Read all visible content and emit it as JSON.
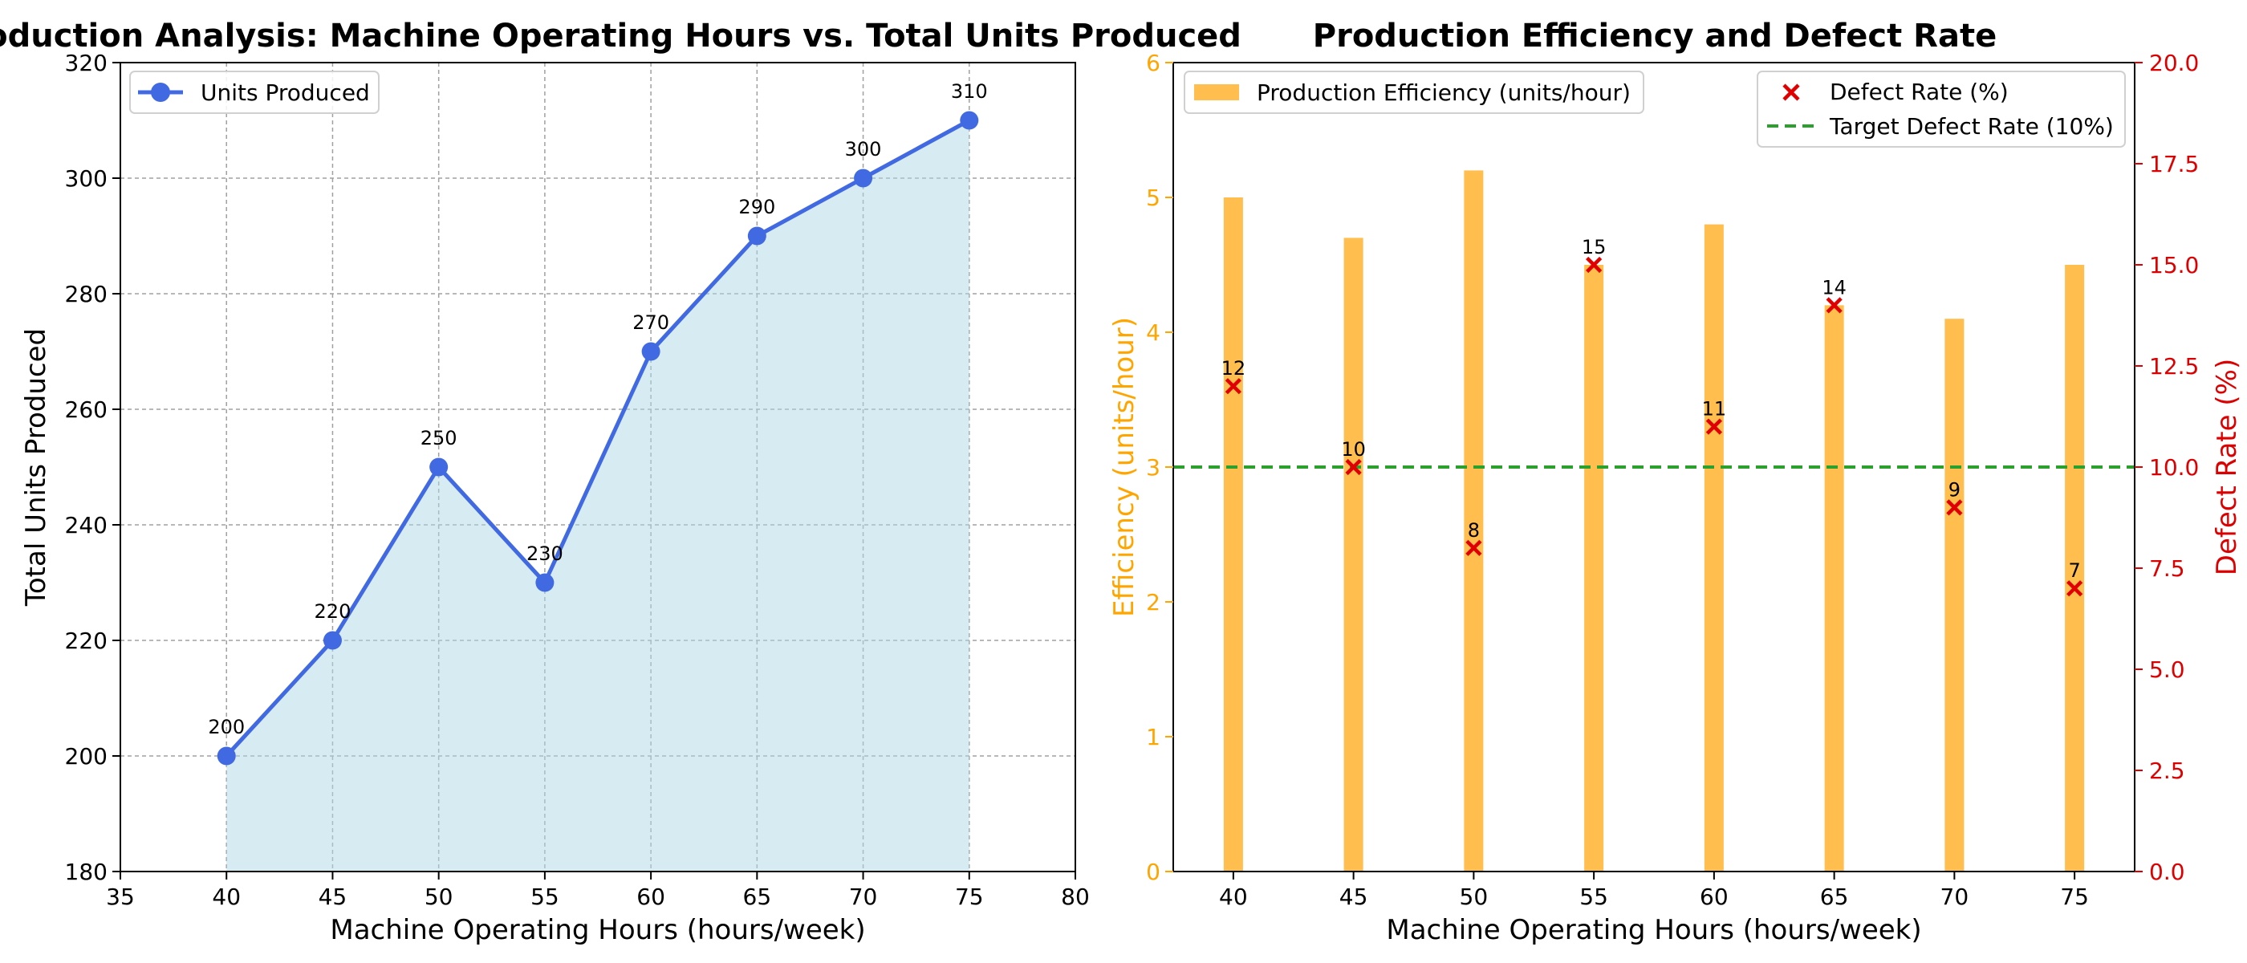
{
  "chart_data": [
    {
      "type": "line",
      "title": "Production Analysis: Machine Operating Hours vs. Total Units Produced",
      "xlabel": "Machine Operating Hours (hours/week)",
      "ylabel": "Total Units Produced",
      "xlim": [
        35,
        80
      ],
      "ylim": [
        180,
        320
      ],
      "xticks": [
        35,
        40,
        45,
        50,
        55,
        60,
        65,
        70,
        75,
        80
      ],
      "yticks": [
        180,
        200,
        220,
        240,
        260,
        280,
        300,
        320
      ],
      "grid": true,
      "legend_position": "top-left",
      "fill_under": true,
      "series": [
        {
          "name": "Units Produced",
          "color": "#4169e1",
          "fill_color": "#add8e6",
          "x": [
            40,
            45,
            50,
            55,
            60,
            65,
            70,
            75
          ],
          "y": [
            200,
            220,
            250,
            230,
            270,
            290,
            300,
            310
          ],
          "labels": [
            "200",
            "220",
            "250",
            "230",
            "270",
            "290",
            "300",
            "310"
          ]
        }
      ]
    },
    {
      "type": "bar",
      "title": "Production Efficiency and Defect Rate",
      "xlabel": "Machine Operating Hours (hours/week)",
      "ylabel": "Efficiency (units/hour)",
      "ylabel_right": "Defect Rate (%)",
      "xlim": [
        37.5,
        77.5
      ],
      "ylim": [
        0,
        6
      ],
      "ylim_right": [
        0,
        20
      ],
      "xticks": [
        40,
        45,
        50,
        55,
        60,
        65,
        70,
        75
      ],
      "yticks": [
        0,
        1,
        2,
        3,
        4,
        5,
        6
      ],
      "yticks_right": [
        "0.0",
        "2.5",
        "5.0",
        "7.5",
        "10.0",
        "12.5",
        "15.0",
        "17.5",
        "20.0"
      ],
      "grid": false,
      "left_axis_color": "#ffa500",
      "right_axis_color": "#dd0000",
      "categories": [
        40,
        45,
        50,
        55,
        60,
        65,
        70,
        75
      ],
      "bar_series": {
        "name": "Production Efficiency (units/hour)",
        "color": "#ffbe4d",
        "values": [
          5.0,
          4.7,
          5.2,
          4.5,
          4.8,
          4.2,
          4.1,
          4.5
        ]
      },
      "scatter_series": {
        "name": "Defect Rate (%)",
        "color": "#e00000",
        "marker": "x",
        "values": [
          12,
          10,
          8,
          15,
          11,
          14,
          9,
          7
        ],
        "labels": [
          "12",
          "10",
          "8",
          "15",
          "11",
          "14",
          "9",
          "7"
        ]
      },
      "reference_line": {
        "name": "Target Defect Rate (10%)",
        "value": 10,
        "color": "#2ca02c",
        "style": "dashed"
      },
      "legend_positions": [
        "top-left",
        "top-right"
      ]
    }
  ]
}
